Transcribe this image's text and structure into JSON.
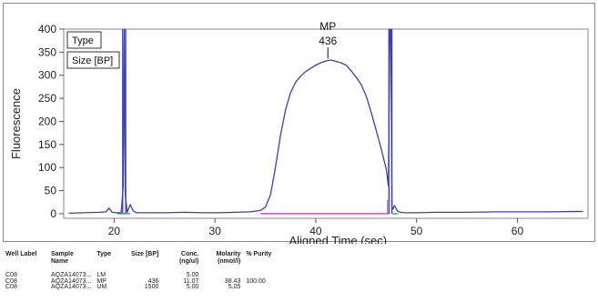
{
  "chart_data": {
    "type": "line",
    "title": "",
    "xlabel": "Aligned Time (sec)",
    "ylabel": "Fluorescence",
    "xlim": [
      15,
      67
    ],
    "ylim": [
      -10,
      400
    ],
    "x_ticks": [
      20,
      30,
      40,
      50,
      60
    ],
    "y_ticks": [
      0,
      50,
      100,
      150,
      200,
      250,
      300,
      350,
      400
    ],
    "grid": false,
    "legend_entries": [
      "Type",
      "Size [BP]"
    ],
    "legend_position": "top-left",
    "colors": {
      "trace": "#3a3fb8",
      "baseline": "#d34fd0",
      "marker_green": "#3cbf3c",
      "frame": "#8a8a8a"
    },
    "annotations": [
      {
        "label": "MP",
        "sublabel": "436",
        "x": 41.2,
        "y": 330
      }
    ],
    "series": [
      {
        "values_x": [
          15.5,
          17,
          18.5,
          19.2,
          19.5,
          19.8,
          20.3,
          20.7,
          20.9,
          21.0,
          21.1,
          21.3,
          21.6,
          21.9,
          22.2,
          23,
          25,
          27,
          29,
          30,
          32,
          33.5,
          34.5,
          35,
          35.5,
          36,
          36.5,
          37,
          37.5,
          38,
          38.5,
          39,
          39.5,
          40,
          40.5,
          41,
          41.5,
          42,
          42.5,
          43,
          43.5,
          44,
          44.5,
          45,
          45.5,
          46,
          46.5,
          47,
          47.2,
          47.35,
          47.45,
          47.55,
          47.65,
          47.8,
          48.1,
          48.4,
          48.8,
          50,
          52,
          55,
          58,
          60,
          63,
          66.5
        ],
        "values_y": [
          1,
          2,
          3,
          4,
          12,
          3,
          2,
          2,
          60,
          400,
          40,
          3,
          20,
          6,
          2,
          2,
          2,
          3,
          2,
          2,
          3,
          4,
          7,
          14,
          40,
          100,
          170,
          225,
          262,
          285,
          298,
          308,
          315,
          322,
          327,
          331,
          333,
          330,
          327,
          322,
          310,
          296,
          280,
          255,
          220,
          180,
          140,
          95,
          60,
          400,
          400,
          15,
          10,
          18,
          6,
          3,
          2,
          2,
          3,
          3,
          4,
          4,
          4,
          5
        ]
      }
    ]
  },
  "table": {
    "headers": [
      "Well Label",
      "Sample Name",
      "Type",
      "Size [BP]",
      "Conc. (ng/ul)",
      "Molarity (nmol/l)",
      "% Purity"
    ],
    "rows": [
      [
        "C08",
        "AQZA14073...",
        "LM",
        "",
        "5.00",
        "",
        ""
      ],
      [
        "C08",
        "AQZA14073...",
        "MP",
        "436",
        "11.07",
        "38.43",
        "100.00"
      ],
      [
        "C08",
        "AQZA14073...",
        "UM",
        "1500",
        "5.00",
        "5.05",
        ""
      ]
    ]
  }
}
